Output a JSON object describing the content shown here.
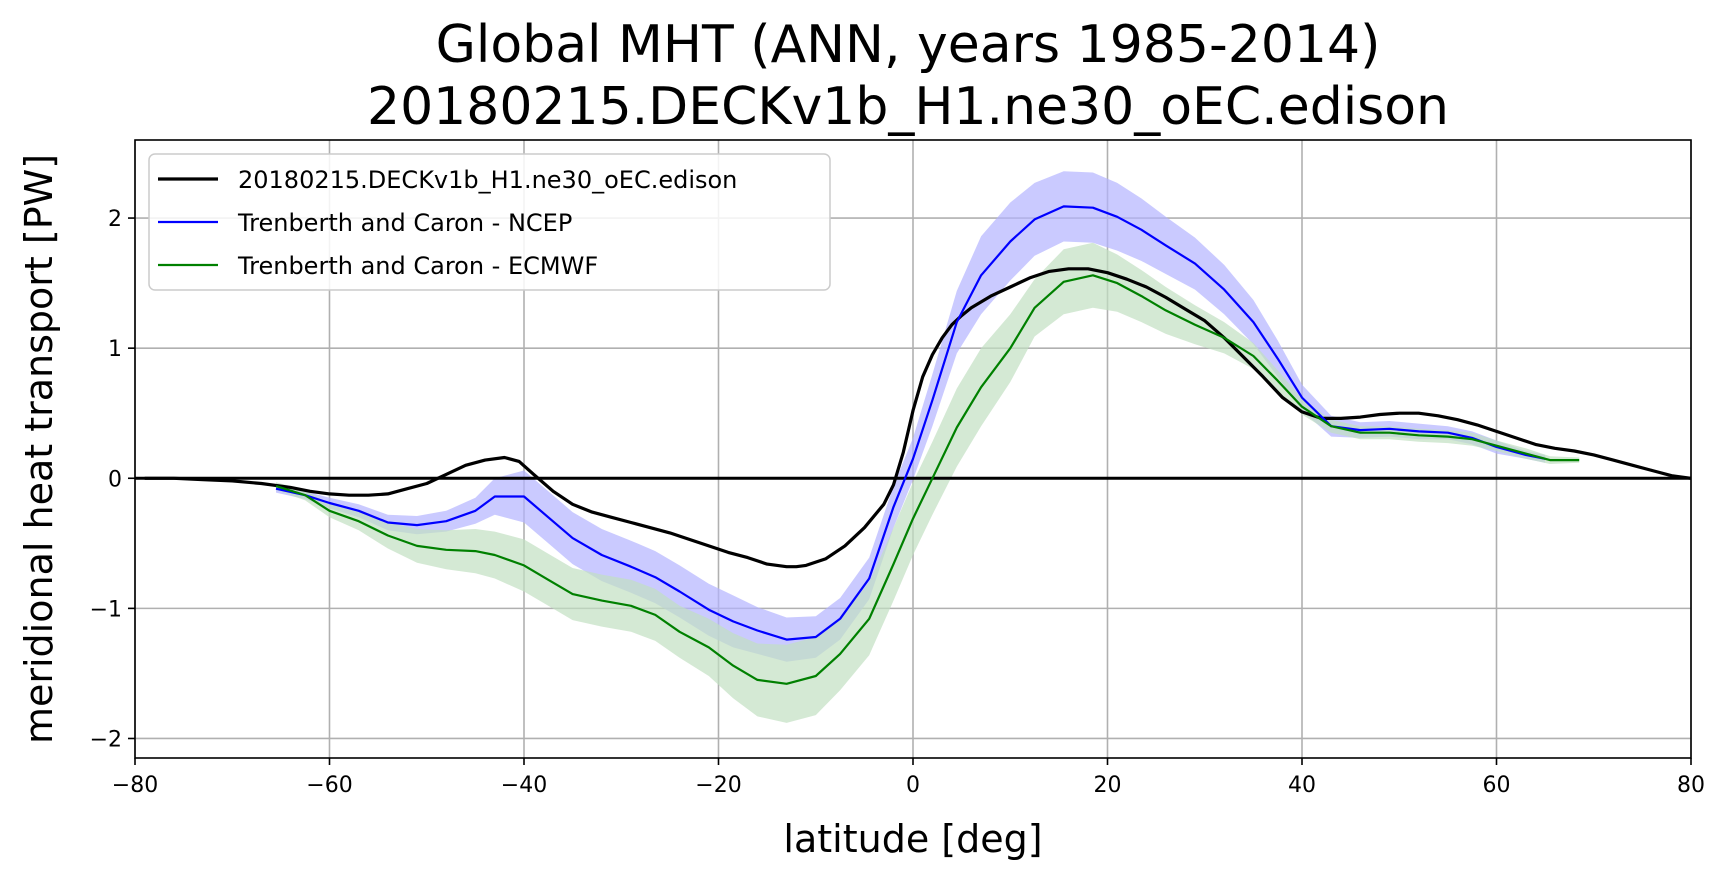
{
  "chart_data": {
    "type": "line",
    "title": "Global MHT (ANN, years 1985-2014)",
    "subtitle": "20180215.DECKv1b_H1.ne30_oEC.edison",
    "xlabel": "latitude [deg]",
    "ylabel": "meridional heat transport [PW]",
    "xlim": [
      -80,
      80
    ],
    "ylim": [
      -2.15,
      2.6
    ],
    "xticks": [
      -80,
      -60,
      -40,
      -20,
      0,
      20,
      40,
      60,
      80
    ],
    "yticks": [
      -2,
      -1,
      0,
      1,
      2
    ],
    "xtick_labels": [
      "−80",
      "−60",
      "−40",
      "−20",
      "0",
      "20",
      "40",
      "60",
      "80"
    ],
    "ytick_labels": [
      "−2",
      "−1",
      "0",
      "1",
      "2"
    ],
    "grid": true,
    "legend_position": "top-left",
    "series": [
      {
        "name": "20180215.DECKv1b_H1.ne30_oEC.edison",
        "color": "#000000",
        "x": [
          -79,
          -76,
          -73,
          -70,
          -67,
          -64,
          -62,
          -60,
          -58,
          -56,
          -54,
          -52,
          -50,
          -48,
          -46,
          -44,
          -42,
          -40.5,
          -39,
          -37,
          -35,
          -33,
          -31,
          -29,
          -27,
          -25,
          -23,
          -21,
          -19,
          -17,
          -15,
          -13,
          -12,
          -11,
          -9,
          -7,
          -5,
          -3,
          -2,
          -1,
          0,
          1,
          2,
          3,
          4,
          5,
          6,
          8,
          10,
          12,
          14,
          16,
          18,
          20,
          22,
          24,
          26,
          28,
          30,
          32,
          34,
          36,
          38,
          40,
          42,
          44,
          46,
          48,
          50,
          52,
          54,
          56,
          58,
          60,
          62,
          64,
          66,
          68,
          70,
          72,
          74,
          76,
          78,
          80
        ],
        "y": [
          0.0,
          0.0,
          -0.01,
          -0.02,
          -0.04,
          -0.07,
          -0.1,
          -0.12,
          -0.13,
          -0.13,
          -0.12,
          -0.08,
          -0.04,
          0.03,
          0.1,
          0.14,
          0.16,
          0.13,
          0.03,
          -0.1,
          -0.2,
          -0.26,
          -0.3,
          -0.34,
          -0.38,
          -0.42,
          -0.47,
          -0.52,
          -0.57,
          -0.61,
          -0.66,
          -0.68,
          -0.68,
          -0.67,
          -0.62,
          -0.52,
          -0.38,
          -0.2,
          -0.05,
          0.2,
          0.52,
          0.78,
          0.95,
          1.08,
          1.18,
          1.25,
          1.31,
          1.4,
          1.47,
          1.54,
          1.59,
          1.61,
          1.61,
          1.58,
          1.53,
          1.47,
          1.39,
          1.3,
          1.21,
          1.08,
          0.93,
          0.78,
          0.62,
          0.51,
          0.46,
          0.46,
          0.47,
          0.49,
          0.5,
          0.5,
          0.48,
          0.45,
          0.41,
          0.36,
          0.31,
          0.26,
          0.23,
          0.21,
          0.18,
          0.14,
          0.1,
          0.06,
          0.02,
          0.0
        ]
      },
      {
        "name": "Trenberth and Caron - NCEP",
        "color": "#0000ff",
        "band_color": "#b3b3ff",
        "x": [
          -65.5,
          -62.5,
          -60,
          -57,
          -54,
          -51,
          -48,
          -45,
          -43,
          -40,
          -37.5,
          -35,
          -32,
          -29,
          -26.5,
          -24,
          -21,
          -18.5,
          -16,
          -13,
          -10,
          -7.5,
          -4.5,
          -2,
          0,
          2,
          4.5,
          7,
          10,
          12.5,
          15.5,
          18.5,
          21,
          23.5,
          26,
          29,
          32,
          35,
          37.5,
          40,
          43,
          46,
          49,
          52,
          55,
          57.5,
          60,
          63,
          65
        ],
        "y": [
          -0.08,
          -0.13,
          -0.19,
          -0.25,
          -0.34,
          -0.36,
          -0.33,
          -0.25,
          -0.14,
          -0.14,
          -0.3,
          -0.46,
          -0.59,
          -0.68,
          -0.76,
          -0.87,
          -1.01,
          -1.1,
          -1.17,
          -1.24,
          -1.22,
          -1.08,
          -0.77,
          -0.22,
          0.15,
          0.6,
          1.2,
          1.56,
          1.82,
          1.99,
          2.09,
          2.08,
          2.01,
          1.91,
          1.79,
          1.65,
          1.45,
          1.2,
          0.92,
          0.62,
          0.4,
          0.37,
          0.38,
          0.36,
          0.35,
          0.31,
          0.24,
          0.18,
          0.15
        ],
        "band": [
          0.03,
          0.03,
          0.04,
          0.05,
          0.06,
          0.07,
          0.08,
          0.1,
          0.14,
          0.2,
          0.2,
          0.2,
          0.2,
          0.2,
          0.2,
          0.2,
          0.2,
          0.2,
          0.18,
          0.17,
          0.16,
          0.16,
          0.16,
          0.16,
          0.16,
          0.2,
          0.24,
          0.3,
          0.3,
          0.28,
          0.27,
          0.27,
          0.26,
          0.24,
          0.22,
          0.2,
          0.19,
          0.17,
          0.14,
          0.1,
          0.08,
          0.06,
          0.06,
          0.06,
          0.05,
          0.05,
          0.05,
          0.03,
          0.03
        ]
      },
      {
        "name": "Trenberth and Caron - ECMWF",
        "color": "#008000",
        "band_color": "#c2e0c2",
        "x": [
          -65.5,
          -62.5,
          -60,
          -57,
          -54,
          -51,
          -48,
          -45,
          -43,
          -40,
          -37.5,
          -35,
          -32,
          -29,
          -26.5,
          -24,
          -21,
          -18.5,
          -16,
          -13,
          -10,
          -7.5,
          -4.5,
          -2,
          0,
          2,
          4.5,
          7,
          10,
          12.5,
          15.5,
          18.5,
          21,
          23.5,
          26,
          29,
          32,
          35,
          37.5,
          40,
          43,
          46,
          49,
          52,
          55,
          57.5,
          60,
          63,
          65.5,
          68.5
        ],
        "y": [
          -0.06,
          -0.13,
          -0.25,
          -0.33,
          -0.44,
          -0.52,
          -0.55,
          -0.56,
          -0.59,
          -0.67,
          -0.78,
          -0.89,
          -0.94,
          -0.98,
          -1.05,
          -1.18,
          -1.3,
          -1.44,
          -1.55,
          -1.58,
          -1.52,
          -1.35,
          -1.08,
          -0.66,
          -0.31,
          0.0,
          0.39,
          0.7,
          1.0,
          1.31,
          1.51,
          1.56,
          1.5,
          1.4,
          1.29,
          1.18,
          1.08,
          0.94,
          0.75,
          0.55,
          0.4,
          0.35,
          0.35,
          0.33,
          0.32,
          0.3,
          0.25,
          0.19,
          0.14,
          0.14
        ],
        "band": [
          0.03,
          0.04,
          0.05,
          0.07,
          0.1,
          0.13,
          0.15,
          0.17,
          0.18,
          0.2,
          0.2,
          0.2,
          0.2,
          0.2,
          0.2,
          0.2,
          0.22,
          0.25,
          0.28,
          0.3,
          0.3,
          0.28,
          0.28,
          0.28,
          0.28,
          0.28,
          0.3,
          0.3,
          0.26,
          0.22,
          0.25,
          0.25,
          0.22,
          0.2,
          0.18,
          0.15,
          0.12,
          0.1,
          0.08,
          0.06,
          0.05,
          0.05,
          0.05,
          0.05,
          0.05,
          0.05,
          0.04,
          0.04,
          0.03,
          0.02
        ]
      }
    ]
  }
}
